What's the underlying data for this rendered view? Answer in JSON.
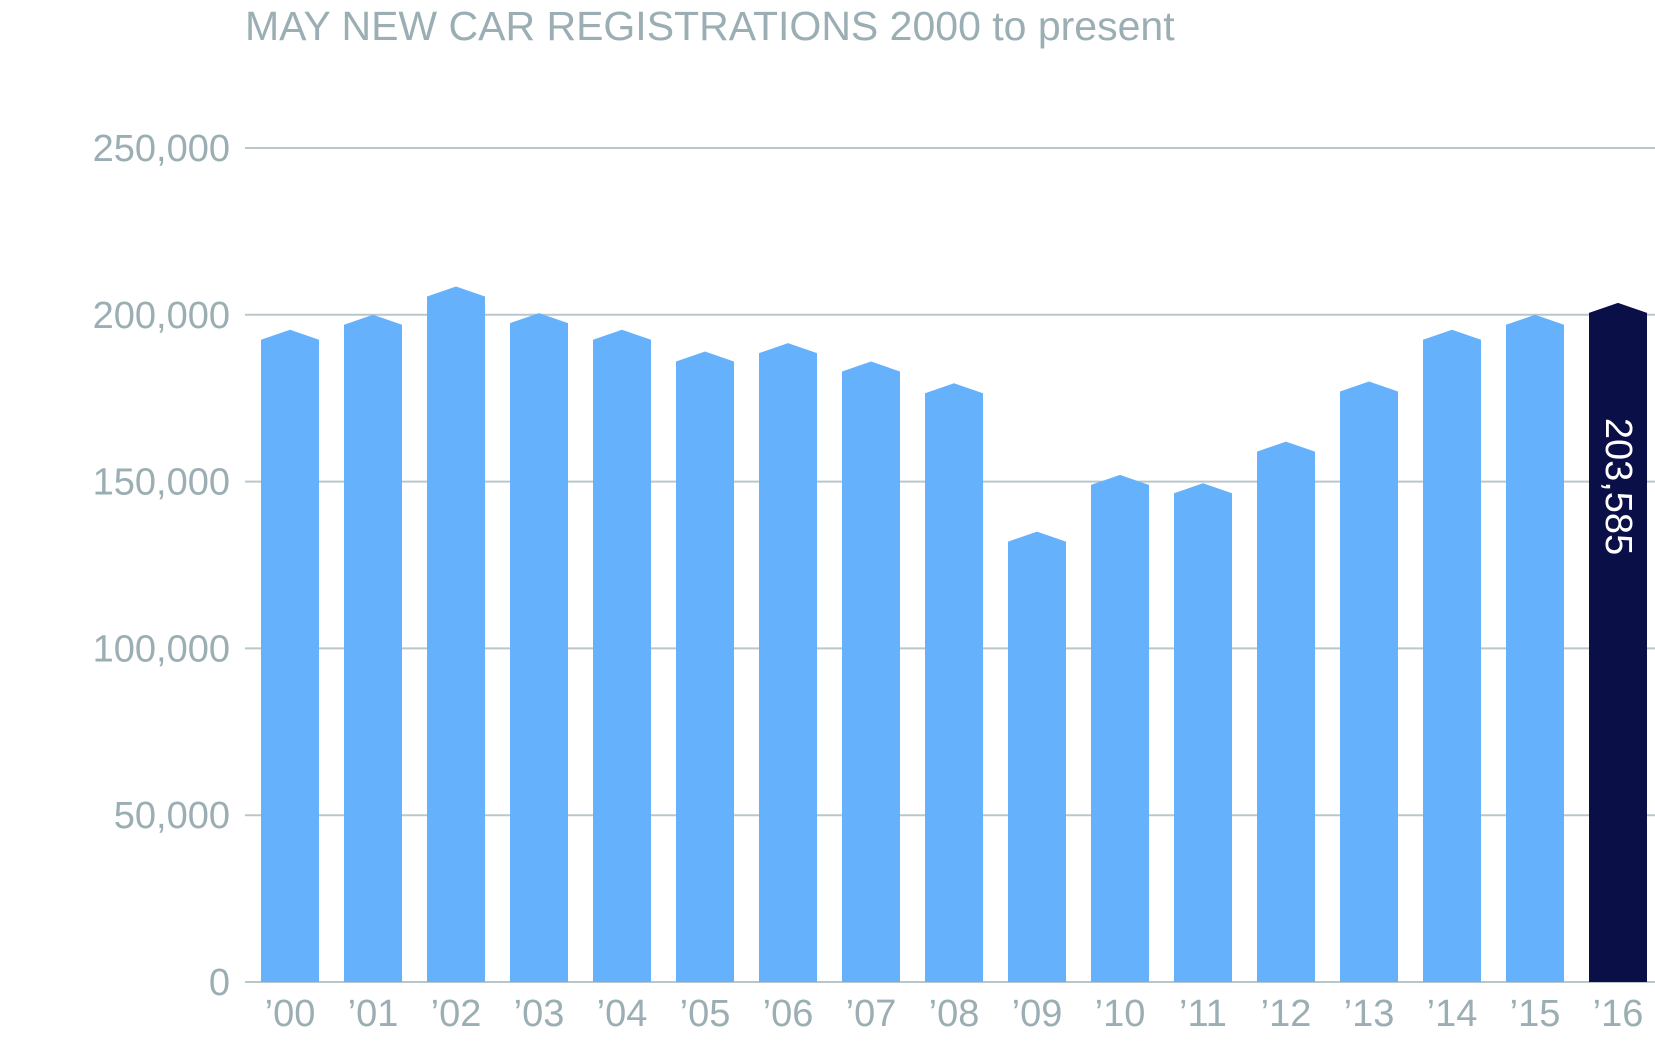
{
  "chart_data": {
    "type": "bar",
    "title": "MAY NEW CAR REGISTRATIONS 2000 to present",
    "xlabel": "",
    "ylabel": "",
    "categories": [
      "’00",
      "’01",
      "’02",
      "’03",
      "’04",
      "’05",
      "’06",
      "’07",
      "’08",
      "’09",
      "’10",
      "’11",
      "’12",
      "’13",
      "’14",
      "’15",
      "’16"
    ],
    "values": [
      195500,
      200000,
      208500,
      200500,
      195500,
      189000,
      191500,
      186000,
      179500,
      135000,
      152000,
      149500,
      162000,
      180000,
      195500,
      200000,
      203585
    ],
    "ylim": [
      0,
      250000
    ],
    "yticks": [
      0,
      50000,
      100000,
      150000,
      200000,
      250000
    ],
    "ytick_labels": [
      "0",
      "50,000",
      "100,000",
      "150,000",
      "200,000",
      "250,000"
    ],
    "grid": true,
    "highlight_index": 16,
    "data_labels": [
      {
        "index": 16,
        "text": "203,585"
      }
    ],
    "colors": {
      "bar": "#66b1fc",
      "highlight": "#0b0f48",
      "grid": "#b9c7ca",
      "text": "#9aaeb3",
      "label_text": "#ffffff"
    }
  }
}
